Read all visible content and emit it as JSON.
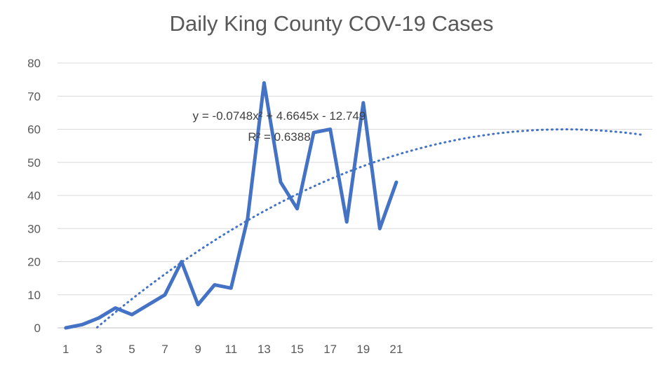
{
  "chart_data": {
    "type": "line",
    "title": "Daily King County COV-19 Cases",
    "xlabel": "",
    "ylabel": "",
    "x": [
      1,
      2,
      3,
      4,
      5,
      6,
      7,
      8,
      9,
      10,
      11,
      12,
      13,
      14,
      15,
      16,
      17,
      18,
      19,
      20,
      21
    ],
    "series": [
      {
        "values": [
          0,
          1,
          3,
          6,
          4,
          7,
          10,
          20,
          7,
          13,
          12,
          33,
          74,
          44,
          36,
          59,
          60,
          32,
          68,
          30,
          44
        ],
        "color": "#4472C4"
      }
    ],
    "trendline": {
      "type": "polynomial",
      "order": 2,
      "coefficients": {
        "a": -0.0748,
        "b": 4.6645,
        "c": -12.749
      },
      "equation_label": "y = -0.0748x² + 4.6645x - 12.749",
      "r2_label": "R² = 0.6388",
      "x_range": [
        1,
        36
      ],
      "style": "dotted",
      "color": "#4472C4"
    },
    "x_tick_labels": [
      "1",
      "3",
      "5",
      "7",
      "9",
      "11",
      "13",
      "15",
      "17",
      "19",
      "21"
    ],
    "y_tick_labels": [
      "0",
      "10",
      "20",
      "30",
      "40",
      "50",
      "60",
      "70",
      "80"
    ],
    "ylim": [
      0,
      80
    ],
    "grid": true,
    "legend": "none"
  }
}
